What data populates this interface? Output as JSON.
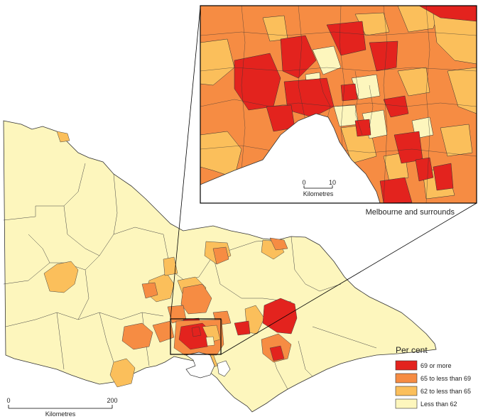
{
  "inset": {
    "caption": "Melbourne and surrounds",
    "scalebar": {
      "start": "0",
      "end": "10",
      "unit": "Kilometres"
    }
  },
  "main_map": {
    "scalebar": {
      "start": "0",
      "end": "200",
      "unit": "Kilometres"
    }
  },
  "legend": {
    "title": "Per cent",
    "items": [
      {
        "label": "69 or more",
        "color": "#e3231e"
      },
      {
        "label": "65 to less than 69",
        "color": "#f68c43"
      },
      {
        "label": "62 to less than 65",
        "color": "#fbbf5b"
      },
      {
        "label": "Less than 62",
        "color": "#fdf6bd"
      }
    ]
  },
  "colors": {
    "water": "#ffffff",
    "boundary": "#333333",
    "frame": "#000000"
  }
}
